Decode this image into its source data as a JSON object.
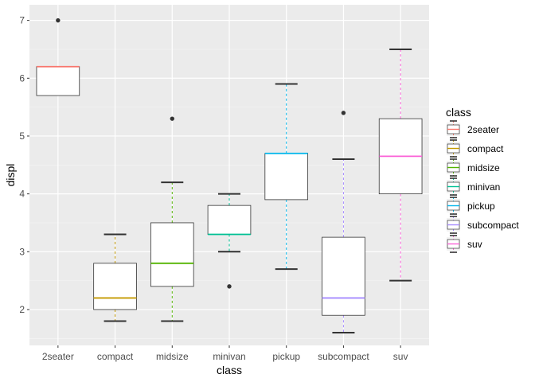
{
  "chart_data": {
    "type": "boxplot",
    "xlabel": "class",
    "ylabel": "displ",
    "ylim": [
      1.38,
      7.27
    ],
    "yticks": [
      2,
      3,
      4,
      5,
      6,
      7
    ],
    "categories": [
      "2seater",
      "compact",
      "midsize",
      "minivan",
      "pickup",
      "subcompact",
      "suv"
    ],
    "boxes": [
      {
        "category": "2seater",
        "whisker_low": 5.7,
        "q1": 5.7,
        "median": 6.2,
        "q3": 6.2,
        "whisker_high": 6.2,
        "outliers": [
          7.0
        ],
        "color": "#F8766D"
      },
      {
        "category": "compact",
        "whisker_low": 1.8,
        "q1": 2.0,
        "median": 2.2,
        "q3": 2.8,
        "whisker_high": 3.3,
        "outliers": [],
        "color": "#C49A00"
      },
      {
        "category": "midsize",
        "whisker_low": 1.8,
        "q1": 2.4,
        "median": 2.8,
        "q3": 3.5,
        "whisker_high": 4.2,
        "outliers": [
          5.3
        ],
        "color": "#53B400"
      },
      {
        "category": "minivan",
        "whisker_low": 3.0,
        "q1": 3.3,
        "median": 3.3,
        "q3": 3.8,
        "whisker_high": 4.0,
        "outliers": [
          2.4
        ],
        "color": "#00C094"
      },
      {
        "category": "pickup",
        "whisker_low": 2.7,
        "q1": 3.9,
        "median": 4.7,
        "q3": 4.7,
        "whisker_high": 5.9,
        "outliers": [],
        "color": "#00B6EB"
      },
      {
        "category": "subcompact",
        "whisker_low": 1.6,
        "q1": 1.9,
        "median": 2.2,
        "q3": 3.25,
        "whisker_high": 4.6,
        "outliers": [
          5.4
        ],
        "color": "#A58AFF"
      },
      {
        "category": "suv",
        "whisker_low": 2.5,
        "q1": 4.0,
        "median": 4.65,
        "q3": 5.3,
        "whisker_high": 6.5,
        "outliers": [],
        "color": "#FB61D7"
      }
    ],
    "legend": {
      "title": "class",
      "position": "right",
      "entries": [
        "2seater",
        "compact",
        "midsize",
        "minivan",
        "pickup",
        "subcompact",
        "suv"
      ]
    },
    "panel_background": "#EBEBEB",
    "grid": true
  }
}
